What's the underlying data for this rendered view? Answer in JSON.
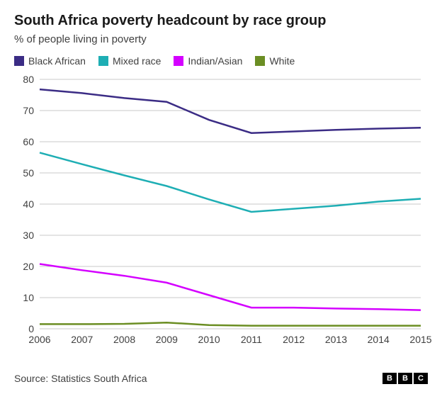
{
  "title": "South Africa poverty headcount by race group",
  "subtitle": "% of people living in poverty",
  "source": "Source: Statistics South Africa",
  "logo": {
    "letters": [
      "B",
      "B",
      "C"
    ]
  },
  "chart": {
    "type": "line",
    "x_categories": [
      "2006",
      "2007",
      "2008",
      "2009",
      "2010",
      "2011",
      "2012",
      "2013",
      "2014",
      "2015"
    ],
    "ylim": [
      0,
      80
    ],
    "ytick_step": 10,
    "gridline_color": "#c8c8c8",
    "background_color": "#ffffff",
    "line_width": 2.5,
    "axis_fontsize": 14,
    "series": [
      {
        "name": "Black African",
        "color": "#3b2c85",
        "values": [
          76.8,
          75.6,
          74.0,
          72.8,
          67.0,
          62.8,
          63.3,
          63.8,
          64.2,
          64.5
        ]
      },
      {
        "name": "Mixed race",
        "color": "#1eaeb4",
        "values": [
          56.5,
          52.8,
          49.2,
          45.8,
          41.5,
          37.5,
          38.5,
          39.5,
          40.8,
          41.7
        ]
      },
      {
        "name": "Indian/Asian",
        "color": "#d400ff",
        "values": [
          20.8,
          18.8,
          17.0,
          14.8,
          10.8,
          6.8,
          6.8,
          6.5,
          6.3,
          6.0
        ]
      },
      {
        "name": "White",
        "color": "#6b8e23",
        "values": [
          1.5,
          1.5,
          1.6,
          2.0,
          1.2,
          1.0,
          1.0,
          1.0,
          1.0,
          1.0
        ]
      }
    ]
  }
}
